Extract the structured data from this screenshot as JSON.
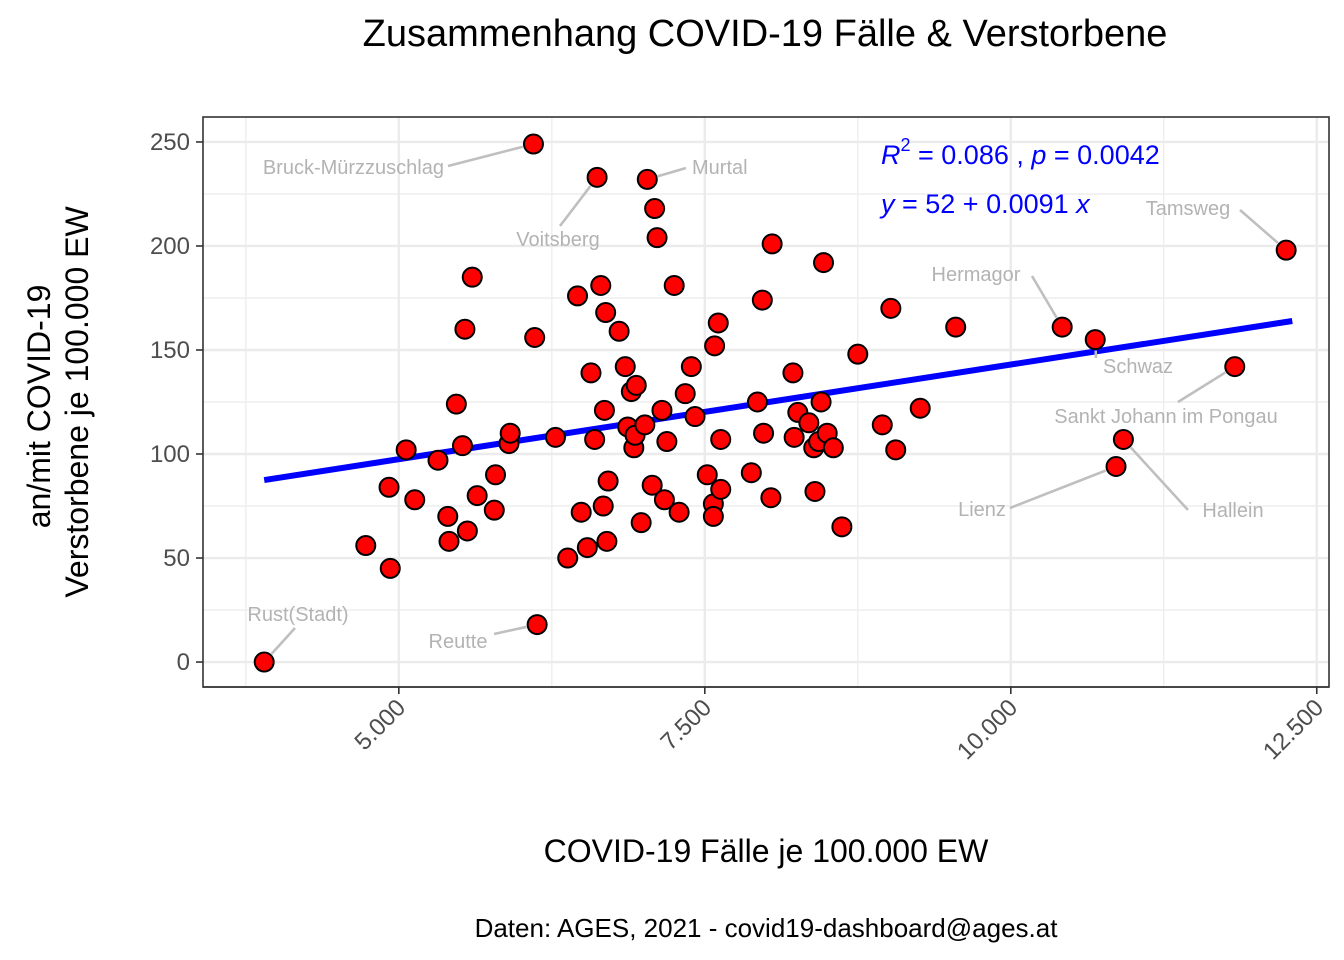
{
  "chart_data": {
    "type": "scatter",
    "title": "Zusammenhang COVID-19 Fälle & Verstorbene",
    "xlabel": "COVID-19 Fälle je 100.000 EW",
    "ylabel_lines": [
      "an/mit COVID-19",
      "Verstorbene je 100.000 EW"
    ],
    "caption": "Daten: AGES, 2021 - covid19-dashboard@ages.at",
    "xlim": [
      3400,
      12600
    ],
    "ylim": [
      -12,
      262
    ],
    "x_ticks": [
      {
        "value": 5000,
        "label": "5.000"
      },
      {
        "value": 7500,
        "label": "7.500"
      },
      {
        "value": 10000,
        "label": "10.000"
      },
      {
        "value": 12500,
        "label": "12.500"
      }
    ],
    "y_ticks": [
      {
        "value": 0,
        "label": "0"
      },
      {
        "value": 50,
        "label": "50"
      },
      {
        "value": 100,
        "label": "100"
      },
      {
        "value": 150,
        "label": "150"
      },
      {
        "value": 200,
        "label": "200"
      },
      {
        "value": 250,
        "label": "250"
      }
    ],
    "grid": true,
    "point_color": "#ff0000",
    "point_outline": "#000000",
    "regression": {
      "color": "#0000ff",
      "x_range": [
        3900,
        12300
      ],
      "intercept": 52,
      "slope": 0.0091,
      "r2_label": "R",
      "r2_sup": "2",
      "r2_value": " = 0.086 , ",
      "p_label": "p",
      "p_value": " = 0.0042",
      "eq_y": "y",
      "eq_mid": " = 52 + 0.0091 ",
      "eq_x": "x"
    },
    "labeled_points": [
      {
        "name": "Bruck-Mürzzuschlag",
        "x": 6100,
        "y": 249
      },
      {
        "name": "Murtal",
        "x": 7030,
        "y": 232
      },
      {
        "name": "Voitsberg",
        "x": 6620,
        "y": 233
      },
      {
        "name": "Tamsweg",
        "x": 12250,
        "y": 198
      },
      {
        "name": "Hermagor",
        "x": 10420,
        "y": 161
      },
      {
        "name": "Schwaz",
        "x": 10690,
        "y": 155
      },
      {
        "name": "Sankt Johann im Pongau",
        "x": 11830,
        "y": 142
      },
      {
        "name": "Hallein",
        "x": 10920,
        "y": 107
      },
      {
        "name": "Lienz",
        "x": 10860,
        "y": 94
      },
      {
        "name": "Rust(Stadt)",
        "x": 3900,
        "y": 0
      },
      {
        "name": "Reutte",
        "x": 6130,
        "y": 18
      }
    ],
    "points": [
      [
        4730,
        56
      ],
      [
        4930,
        45
      ],
      [
        4920,
        84
      ],
      [
        5060,
        102
      ],
      [
        5130,
        78
      ],
      [
        5320,
        97
      ],
      [
        5400,
        70
      ],
      [
        5410,
        58
      ],
      [
        5470,
        124
      ],
      [
        5520,
        104
      ],
      [
        5540,
        160
      ],
      [
        5560,
        63
      ],
      [
        5600,
        185
      ],
      [
        5640,
        80
      ],
      [
        5780,
        73
      ],
      [
        5790,
        90
      ],
      [
        5900,
        105
      ],
      [
        5910,
        110
      ],
      [
        6110,
        156
      ],
      [
        6280,
        108
      ],
      [
        6380,
        50
      ],
      [
        6460,
        176
      ],
      [
        6490,
        72
      ],
      [
        6540,
        55
      ],
      [
        6570,
        139
      ],
      [
        6600,
        107
      ],
      [
        6650,
        181
      ],
      [
        6670,
        75
      ],
      [
        6680,
        121
      ],
      [
        6690,
        168
      ],
      [
        6700,
        58
      ],
      [
        6710,
        87
      ],
      [
        6800,
        159
      ],
      [
        6850,
        142
      ],
      [
        6870,
        113
      ],
      [
        6900,
        130
      ],
      [
        6920,
        103
      ],
      [
        6930,
        109
      ],
      [
        6940,
        133
      ],
      [
        6980,
        67
      ],
      [
        7010,
        114
      ],
      [
        7070,
        85
      ],
      [
        7090,
        218
      ],
      [
        7110,
        204
      ],
      [
        7150,
        121
      ],
      [
        7170,
        78
      ],
      [
        7190,
        106
      ],
      [
        7250,
        181
      ],
      [
        7290,
        72
      ],
      [
        7340,
        129
      ],
      [
        7390,
        142
      ],
      [
        7420,
        118
      ],
      [
        7520,
        90
      ],
      [
        7570,
        76
      ],
      [
        7570,
        70
      ],
      [
        7580,
        152
      ],
      [
        7610,
        163
      ],
      [
        7630,
        83
      ],
      [
        7630,
        107
      ],
      [
        7880,
        91
      ],
      [
        7930,
        125
      ],
      [
        7970,
        174
      ],
      [
        7980,
        110
      ],
      [
        8040,
        79
      ],
      [
        8050,
        201
      ],
      [
        8220,
        139
      ],
      [
        8230,
        108
      ],
      [
        8260,
        120
      ],
      [
        8350,
        115
      ],
      [
        8390,
        103
      ],
      [
        8400,
        82
      ],
      [
        8430,
        106
      ],
      [
        8450,
        125
      ],
      [
        8470,
        192
      ],
      [
        8500,
        110
      ],
      [
        8550,
        103
      ],
      [
        8620,
        65
      ],
      [
        8750,
        148
      ],
      [
        8950,
        114
      ],
      [
        9020,
        170
      ],
      [
        9060,
        102
      ],
      [
        9260,
        122
      ],
      [
        9550,
        161
      ]
    ]
  }
}
